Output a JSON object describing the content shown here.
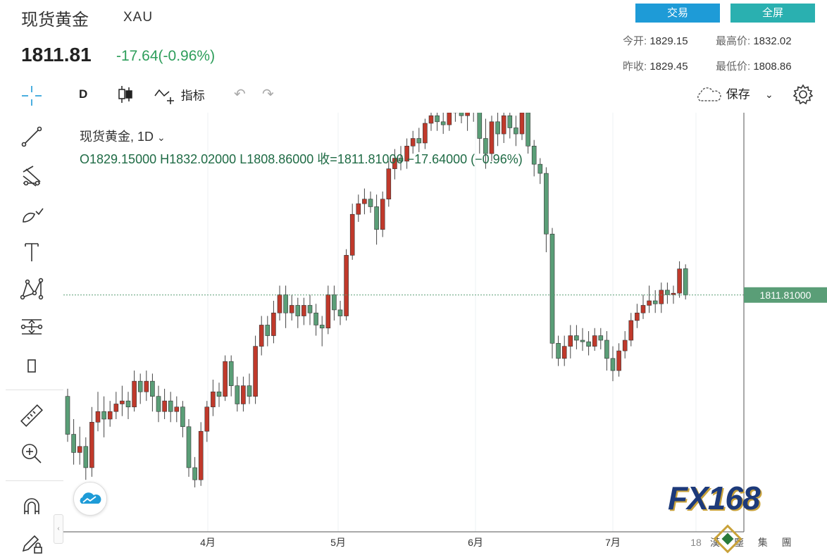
{
  "header": {
    "title": "现货黄金",
    "symbol": "XAU",
    "price": "1811.81",
    "change": "-17.64(-0.96%)",
    "trade_label": "交易",
    "fullscreen_label": "全屏",
    "open_label": "今开:",
    "open_value": "1829.15",
    "high_label": "最高价:",
    "high_value": "1832.02",
    "prev_close_label": "昨收:",
    "prev_close_value": "1829.45",
    "low_label": "最低价:",
    "low_value": "1808.86"
  },
  "toolbar": {
    "interval": "D",
    "indicators_label": "指标",
    "save_label": "保存"
  },
  "legend": {
    "name": "现货黄金, 1D",
    "ohlc": "O1829.15000   H1832.02000   L1808.86000   收=1811.81000   −17.64000 (−0.96%)"
  },
  "price_tag": "1811.81000",
  "watermark": {
    "logo": "FX168",
    "sub": "漢 塵 集 團"
  },
  "colors": {
    "up": "#c0392b",
    "down": "#5a9e77",
    "accent": "#1e9bd7",
    "change_green": "#2e9e5b"
  },
  "chart_data": {
    "type": "candlestick",
    "x_tick_labels": [
      "4月",
      "5月",
      "6月",
      "7月",
      "18"
    ],
    "last_price": 1811.81,
    "ylim": [
      1665,
      1925
    ],
    "candles": [
      [
        1745,
        1720,
        1750,
        1715
      ],
      [
        1720,
        1708,
        1730,
        1700
      ],
      [
        1708,
        1712,
        1725,
        1700
      ],
      [
        1712,
        1698,
        1718,
        1690
      ],
      [
        1698,
        1728,
        1738,
        1692
      ],
      [
        1728,
        1735,
        1748,
        1722
      ],
      [
        1735,
        1730,
        1745,
        1718
      ],
      [
        1730,
        1735,
        1742,
        1725
      ],
      [
        1735,
        1740,
        1748,
        1730
      ],
      [
        1740,
        1742,
        1752,
        1732
      ],
      [
        1742,
        1738,
        1748,
        1730
      ],
      [
        1738,
        1755,
        1762,
        1735
      ],
      [
        1755,
        1748,
        1760,
        1740
      ],
      [
        1748,
        1755,
        1762,
        1742
      ],
      [
        1755,
        1745,
        1760,
        1735
      ],
      [
        1745,
        1735,
        1752,
        1728
      ],
      [
        1735,
        1742,
        1750,
        1730
      ],
      [
        1742,
        1735,
        1748,
        1728
      ],
      [
        1735,
        1738,
        1745,
        1728
      ],
      [
        1738,
        1725,
        1742,
        1718
      ],
      [
        1725,
        1698,
        1730,
        1692
      ],
      [
        1698,
        1690,
        1705,
        1685
      ],
      [
        1690,
        1722,
        1728,
        1686
      ],
      [
        1722,
        1738,
        1742,
        1715
      ],
      [
        1738,
        1748,
        1756,
        1732
      ],
      [
        1748,
        1745,
        1754,
        1738
      ],
      [
        1745,
        1768,
        1772,
        1742
      ],
      [
        1768,
        1752,
        1772,
        1745
      ],
      [
        1752,
        1740,
        1758,
        1735
      ],
      [
        1740,
        1752,
        1758,
        1735
      ],
      [
        1752,
        1745,
        1760,
        1740
      ],
      [
        1745,
        1778,
        1785,
        1740
      ],
      [
        1778,
        1792,
        1798,
        1772
      ],
      [
        1792,
        1785,
        1798,
        1778
      ],
      [
        1785,
        1800,
        1808,
        1780
      ],
      [
        1800,
        1812,
        1818,
        1795
      ],
      [
        1812,
        1800,
        1818,
        1790
      ],
      [
        1800,
        1805,
        1812,
        1795
      ],
      [
        1805,
        1798,
        1810,
        1790
      ],
      [
        1798,
        1805,
        1810,
        1792
      ],
      [
        1805,
        1800,
        1812,
        1792
      ],
      [
        1800,
        1792,
        1806,
        1785
      ],
      [
        1792,
        1790,
        1798,
        1778
      ],
      [
        1790,
        1812,
        1818,
        1786
      ],
      [
        1812,
        1802,
        1818,
        1795
      ],
      [
        1802,
        1798,
        1808,
        1792
      ],
      [
        1798,
        1838,
        1842,
        1795
      ],
      [
        1838,
        1865,
        1872,
        1835
      ],
      [
        1865,
        1872,
        1878,
        1860
      ],
      [
        1872,
        1875,
        1882,
        1865
      ],
      [
        1875,
        1870,
        1880,
        1866
      ],
      [
        1870,
        1855,
        1878,
        1845
      ],
      [
        1855,
        1875,
        1880,
        1850
      ],
      [
        1875,
        1895,
        1900,
        1870
      ],
      [
        1895,
        1902,
        1908,
        1888
      ],
      [
        1902,
        1900,
        1910,
        1894
      ],
      [
        1900,
        1910,
        1915,
        1895
      ],
      [
        1910,
        1915,
        1920,
        1905
      ],
      [
        1915,
        1912,
        1922,
        1906
      ],
      [
        1912,
        1925,
        1928,
        1908
      ],
      [
        1925,
        1930,
        1935,
        1920
      ],
      [
        1930,
        1926,
        1938,
        1920
      ],
      [
        1926,
        1924,
        1932,
        1918
      ],
      [
        1924,
        1932,
        1938,
        1920
      ],
      [
        1932,
        1938,
        1942,
        1926
      ],
      [
        1938,
        1930,
        1942,
        1925
      ],
      [
        1930,
        1935,
        1940,
        1920
      ],
      [
        1935,
        1938,
        1943,
        1926
      ],
      [
        1938,
        1915,
        1942,
        1905
      ],
      [
        1915,
        1905,
        1928,
        1895
      ],
      [
        1905,
        1926,
        1930,
        1900
      ],
      [
        1926,
        1918,
        1932,
        1910
      ],
      [
        1918,
        1930,
        1935,
        1912
      ],
      [
        1930,
        1922,
        1936,
        1915
      ],
      [
        1922,
        1918,
        1930,
        1910
      ],
      [
        1918,
        1932,
        1938,
        1914
      ],
      [
        1932,
        1910,
        1936,
        1905
      ],
      [
        1910,
        1898,
        1914,
        1890
      ],
      [
        1898,
        1892,
        1902,
        1885
      ],
      [
        1892,
        1852,
        1896,
        1840
      ],
      [
        1852,
        1780,
        1856,
        1770
      ],
      [
        1780,
        1770,
        1785,
        1765
      ],
      [
        1770,
        1778,
        1785,
        1765
      ],
      [
        1778,
        1785,
        1792,
        1770
      ],
      [
        1785,
        1782,
        1792,
        1776
      ],
      [
        1782,
        1781,
        1790,
        1775
      ],
      [
        1781,
        1778,
        1788,
        1772
      ],
      [
        1778,
        1785,
        1790,
        1775
      ],
      [
        1785,
        1782,
        1790,
        1776
      ],
      [
        1782,
        1770,
        1788,
        1762
      ],
      [
        1770,
        1762,
        1778,
        1755
      ],
      [
        1762,
        1775,
        1780,
        1758
      ],
      [
        1775,
        1782,
        1788,
        1770
      ],
      [
        1782,
        1795,
        1800,
        1778
      ],
      [
        1795,
        1800,
        1806,
        1790
      ],
      [
        1800,
        1805,
        1812,
        1796
      ],
      [
        1805,
        1808,
        1818,
        1800
      ],
      [
        1808,
        1806,
        1815,
        1800
      ],
      [
        1806,
        1815,
        1820,
        1800
      ],
      [
        1815,
        1812,
        1820,
        1806
      ],
      [
        1812,
        1813,
        1818,
        1806
      ],
      [
        1813,
        1829,
        1834,
        1810
      ],
      [
        1829.15,
        1811.81,
        1832.02,
        1808.86
      ]
    ]
  }
}
